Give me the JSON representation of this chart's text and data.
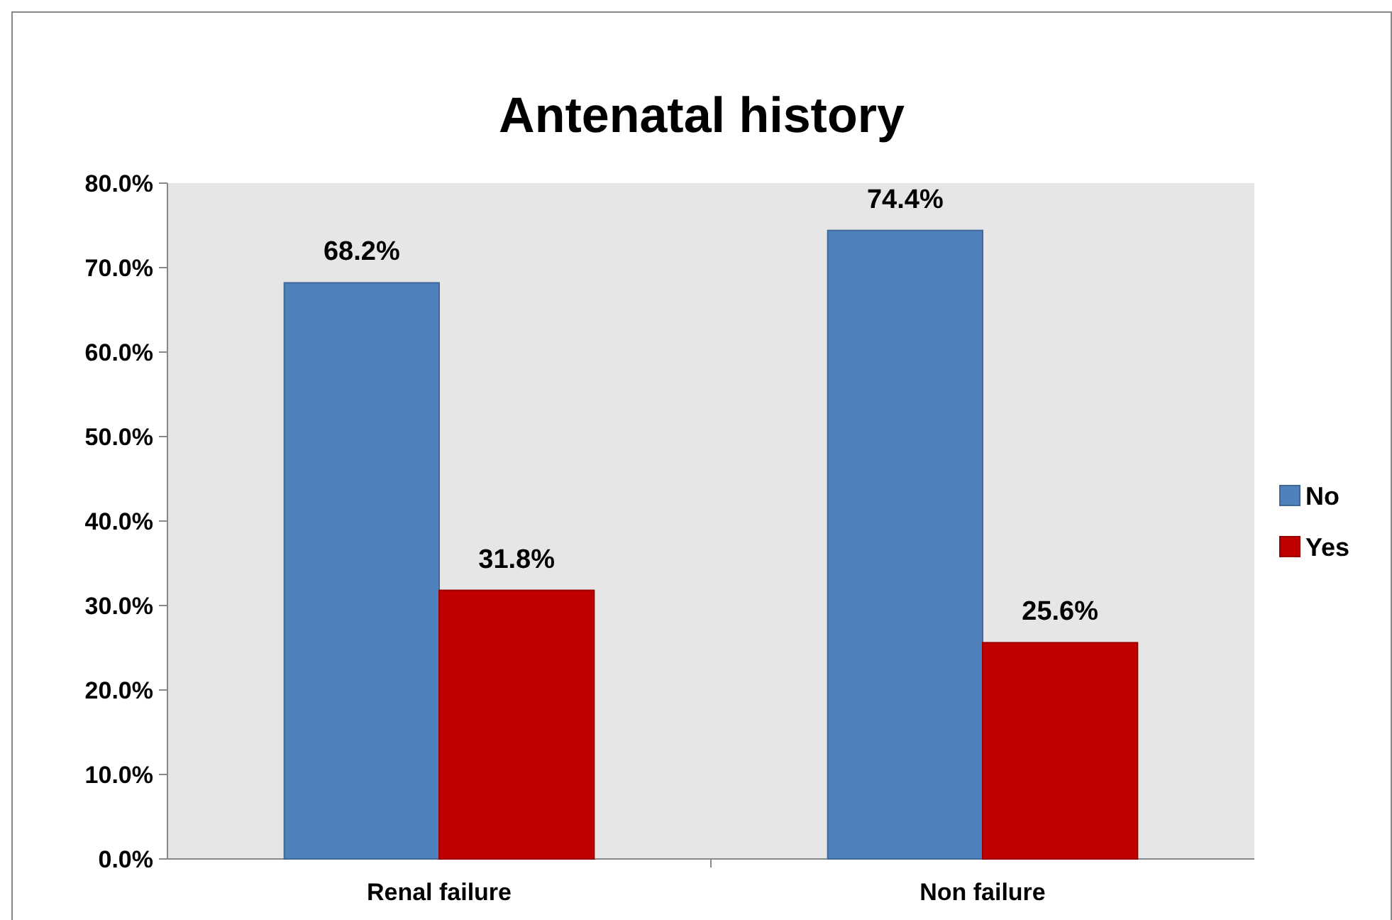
{
  "chart_data": {
    "type": "bar",
    "title": "Antenatal history",
    "categories": [
      "Renal failure",
      "Non failure"
    ],
    "series": [
      {
        "name": "No",
        "color": "#4f81bd",
        "values": [
          68.2,
          74.4
        ],
        "value_labels": [
          "68.2%",
          "74.4%"
        ]
      },
      {
        "name": "Yes",
        "color": "#c00000",
        "values": [
          31.8,
          25.6
        ],
        "value_labels": [
          "31.8%",
          "25.6%"
        ]
      }
    ],
    "ylim": [
      0,
      80
    ],
    "yticks": [
      {
        "value": 0,
        "label": "0.0%"
      },
      {
        "value": 10,
        "label": "10.0%"
      },
      {
        "value": 20,
        "label": "20.0%"
      },
      {
        "value": 30,
        "label": "30.0%"
      },
      {
        "value": 40,
        "label": "40.0%"
      },
      {
        "value": 50,
        "label": "50.0%"
      },
      {
        "value": 60,
        "label": "60.0%"
      },
      {
        "value": 70,
        "label": "70.0%"
      },
      {
        "value": 80,
        "label": "80.0%"
      }
    ],
    "grid": false,
    "legend": "right"
  }
}
